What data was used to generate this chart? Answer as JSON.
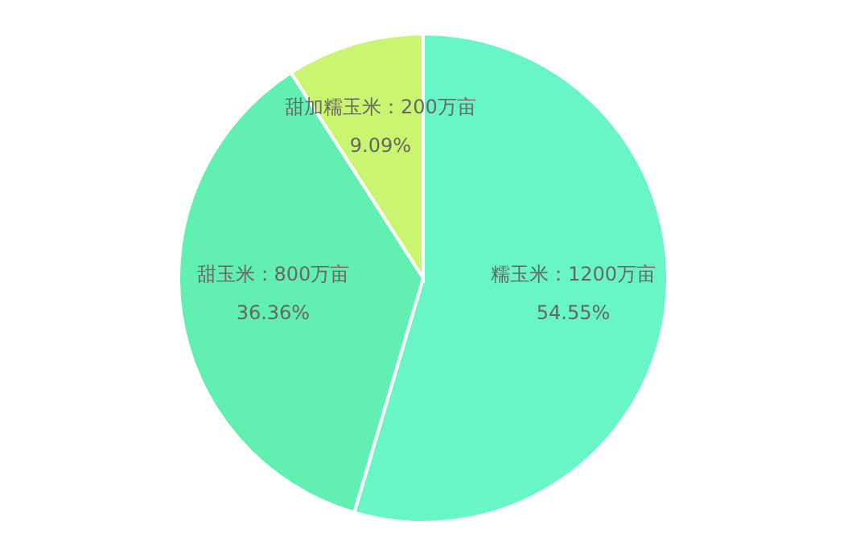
{
  "chart_data": {
    "type": "pie",
    "categories": [
      "糯玉米",
      "甜玉米",
      "甜加糯玉米"
    ],
    "values": [
      1200,
      800,
      200
    ],
    "colors": [
      "#68f6c5",
      "#62efb2",
      "#c9f571"
    ],
    "value_labels": [
      "1200万亩\n54.55%",
      "800万亩\n36.36%",
      "200万亩\n9.09%"
    ],
    "legend": false
  }
}
